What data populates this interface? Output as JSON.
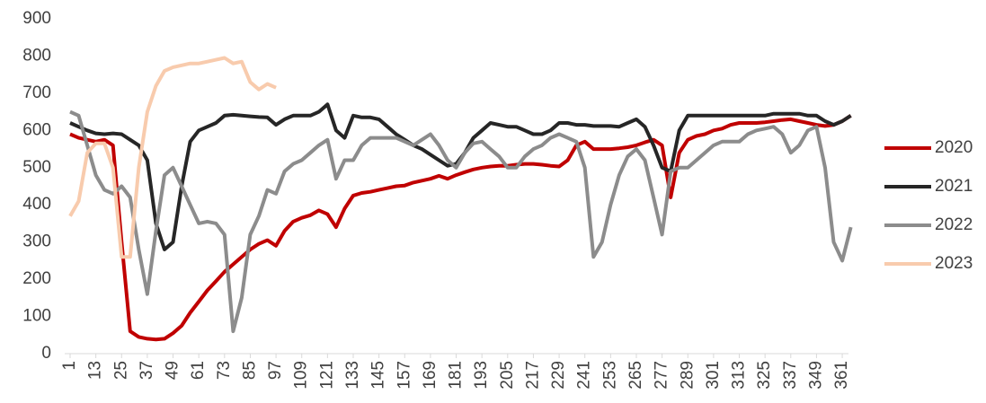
{
  "chart_data": {
    "type": "line",
    "x": [
      1,
      5,
      9,
      13,
      17,
      21,
      25,
      29,
      33,
      37,
      41,
      45,
      49,
      53,
      57,
      61,
      65,
      69,
      73,
      77,
      81,
      85,
      89,
      93,
      97,
      101,
      105,
      109,
      113,
      117,
      121,
      125,
      129,
      133,
      137,
      141,
      145,
      149,
      153,
      157,
      161,
      165,
      169,
      173,
      177,
      181,
      185,
      189,
      193,
      197,
      201,
      205,
      209,
      213,
      217,
      221,
      225,
      229,
      233,
      237,
      241,
      245,
      249,
      253,
      257,
      261,
      265,
      269,
      273,
      277,
      281,
      285,
      289,
      293,
      297,
      301,
      305,
      309,
      313,
      317,
      321,
      325,
      329,
      333,
      337,
      341,
      345,
      349,
      353,
      357,
      361,
      365
    ],
    "series": [
      {
        "name": "2020",
        "color": "#c00000",
        "values": [
          590,
          580,
          575,
          570,
          575,
          560,
          300,
          60,
          45,
          40,
          38,
          40,
          55,
          75,
          110,
          140,
          170,
          195,
          220,
          240,
          260,
          280,
          295,
          305,
          290,
          330,
          355,
          365,
          372,
          385,
          375,
          340,
          390,
          425,
          432,
          435,
          440,
          445,
          450,
          452,
          460,
          465,
          470,
          478,
          470,
          480,
          488,
          495,
          500,
          503,
          505,
          505,
          508,
          510,
          510,
          508,
          505,
          503,
          520,
          560,
          570,
          550,
          550,
          550,
          552,
          555,
          560,
          568,
          575,
          560,
          420,
          540,
          575,
          585,
          590,
          600,
          605,
          615,
          620,
          620,
          620,
          622,
          625,
          628,
          630,
          625,
          620,
          615,
          612,
          615,
          625,
          640
        ]
      },
      {
        "name": "2021",
        "color": "#262626",
        "values": [
          620,
          610,
          600,
          592,
          590,
          592,
          590,
          575,
          560,
          520,
          350,
          280,
          300,
          450,
          570,
          600,
          610,
          620,
          640,
          642,
          640,
          638,
          636,
          635,
          615,
          630,
          640,
          640,
          640,
          650,
          670,
          600,
          580,
          640,
          635,
          635,
          630,
          610,
          590,
          575,
          560,
          550,
          535,
          520,
          505,
          510,
          540,
          580,
          600,
          620,
          615,
          610,
          610,
          600,
          590,
          590,
          600,
          620,
          620,
          615,
          615,
          612,
          612,
          612,
          610,
          620,
          630,
          610,
          560,
          500,
          490,
          600,
          640,
          640,
          640,
          640,
          640,
          640,
          640,
          640,
          640,
          640,
          645,
          645,
          645,
          645,
          640,
          640,
          625,
          615,
          625,
          640
        ]
      },
      {
        "name": "2022",
        "color": "#8c8c8c",
        "values": [
          650,
          640,
          560,
          480,
          440,
          430,
          450,
          420,
          280,
          160,
          330,
          480,
          500,
          450,
          400,
          350,
          355,
          350,
          320,
          60,
          150,
          320,
          370,
          440,
          430,
          490,
          510,
          520,
          540,
          560,
          575,
          470,
          520,
          520,
          560,
          580,
          580,
          580,
          580,
          570,
          560,
          575,
          590,
          560,
          520,
          500,
          540,
          565,
          570,
          550,
          530,
          500,
          500,
          530,
          550,
          560,
          580,
          590,
          580,
          570,
          500,
          260,
          300,
          400,
          480,
          530,
          550,
          520,
          420,
          320,
          490,
          500,
          500,
          520,
          540,
          560,
          570,
          570,
          570,
          590,
          600,
          605,
          610,
          590,
          540,
          560,
          600,
          610,
          500,
          300,
          250,
          340
        ]
      },
      {
        "name": "2023",
        "color": "#f8cbad",
        "values": [
          370,
          410,
          540,
          565,
          565,
          500,
          260,
          260,
          500,
          650,
          720,
          760,
          770,
          775,
          780,
          780,
          785,
          790,
          795,
          780,
          785,
          730,
          710,
          725,
          715,
          null,
          null,
          null,
          null,
          null,
          null,
          null,
          null,
          null,
          null,
          null,
          null,
          null,
          null,
          null,
          null,
          null,
          null,
          null,
          null,
          null,
          null,
          null,
          null,
          null,
          null,
          null,
          null,
          null,
          null,
          null,
          null,
          null,
          null,
          null,
          null,
          null,
          null,
          null,
          null,
          null,
          null,
          null,
          null,
          null,
          null,
          null,
          null,
          null,
          null,
          null,
          null,
          null,
          null,
          null,
          null,
          null,
          null,
          null,
          null,
          null,
          null,
          null,
          null,
          null,
          null,
          null
        ]
      }
    ],
    "xlim": [
      1,
      366
    ],
    "xticks": [
      1,
      13,
      25,
      37,
      49,
      61,
      73,
      85,
      97,
      109,
      121,
      133,
      145,
      157,
      169,
      181,
      193,
      205,
      217,
      229,
      241,
      253,
      265,
      277,
      289,
      301,
      313,
      325,
      337,
      349,
      361
    ],
    "ylim": [
      0,
      900
    ],
    "yticks": [
      0,
      100,
      200,
      300,
      400,
      500,
      600,
      700,
      800,
      900
    ],
    "legend": "right"
  }
}
